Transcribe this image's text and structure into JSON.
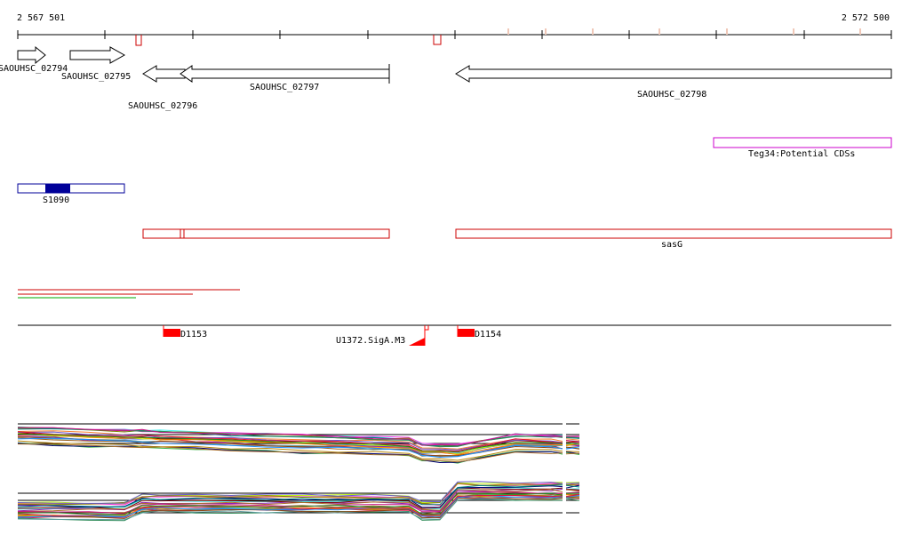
{
  "coordinates": {
    "start": "2 567 501",
    "end": "2 572 500"
  },
  "genes": [
    {
      "name": "SAOUHSC_02794"
    },
    {
      "name": "SAOUHSC_02795"
    },
    {
      "name": "SAOUHSC_02796"
    },
    {
      "name": "SAOUHSC_02797"
    },
    {
      "name": "SAOUHSC_02798"
    }
  ],
  "features": {
    "potential_cds": "Teg34:Potential CDSs",
    "srna": "S1090",
    "annotation": "sasG"
  },
  "regulatory": [
    {
      "name": "D1153"
    },
    {
      "name": "U1372.SigA.M3"
    },
    {
      "name": "D1154"
    }
  ],
  "colors": {
    "axis": "#000000",
    "annotation_red": "#cc0000",
    "feature_blue": "#000099",
    "potential_cds": "#cc00cc",
    "filled_red": "#ff0000",
    "pale_tick": "#f0c8b8"
  }
}
